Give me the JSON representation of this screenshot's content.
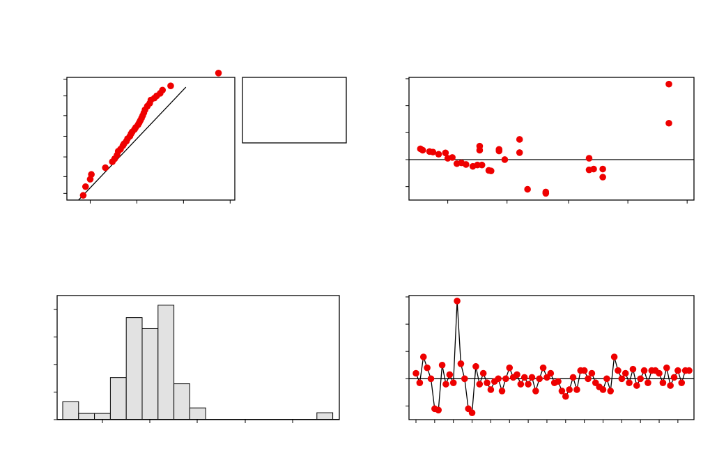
{
  "chart_data": [
    {
      "type": "scatter",
      "panel": "normal-probability-plot",
      "reference_line": "fitted",
      "legend_box": "right, empty",
      "x": [
        -2.3,
        -2.2,
        -2.0,
        -1.95,
        -1.35,
        -1.05,
        -0.95,
        -0.85,
        -0.8,
        -0.7,
        -0.6,
        -0.55,
        -0.45,
        -0.4,
        -0.3,
        -0.25,
        -0.2,
        -0.1,
        -0.05,
        0.05,
        0.1,
        0.15,
        0.2,
        0.25,
        0.3,
        0.35,
        0.45,
        0.55,
        0.6,
        0.75,
        0.85,
        1.0,
        1.1,
        1.45,
        3.5
      ],
      "y": [
        0.8,
        2,
        4,
        6,
        10,
        15,
        18,
        22,
        27,
        30,
        35,
        38,
        42,
        46,
        50,
        54,
        57,
        61,
        64,
        68,
        71,
        74,
        77,
        80,
        83,
        86,
        89,
        91,
        93,
        94,
        95,
        96,
        97,
        98,
        99.5
      ],
      "xlim": [
        -3,
        4.2
      ],
      "ylim_quantile": [
        -2.6,
        2.4
      ]
    },
    {
      "type": "scatter",
      "panel": "residuals-vs-fits",
      "reference_line": "zero",
      "x": [
        1.5,
        1.6,
        1.9,
        2.05,
        2.3,
        2.6,
        2.7,
        2.9,
        3.1,
        3.3,
        3.5,
        3.8,
        4.0,
        4.1,
        4.1,
        4.2,
        4.5,
        4.6,
        4.95,
        4.95,
        5.2,
        5.85,
        5.85,
        6.2,
        7.0,
        7.0,
        8.9,
        8.9,
        9.1,
        9.5,
        9.5,
        12.4,
        12.4
      ],
      "y": [
        0.4,
        0.35,
        0.3,
        0.28,
        0.2,
        0.25,
        0.05,
        0.08,
        -0.15,
        -0.12,
        -0.18,
        -0.25,
        -0.2,
        0.5,
        0.35,
        -0.2,
        -0.4,
        -0.42,
        0.38,
        0.32,
        0.0,
        0.75,
        0.26,
        -1.1,
        -1.2,
        -1.25,
        0.05,
        -0.38,
        -0.35,
        -0.65,
        -0.35,
        1.35,
        2.8
      ],
      "xlim": [
        1,
        13.5
      ],
      "ylim": [
        -1.5,
        3.05
      ]
    },
    {
      "type": "bar",
      "panel": "histogram-of-residuals",
      "values": [
        2.6,
        0.9,
        0.9,
        6.1,
        14.8,
        13.2,
        16.6,
        5.2,
        1.7,
        0,
        0,
        0,
        0,
        0,
        0,
        0,
        1.0
      ],
      "ylim": [
        0,
        18
      ]
    },
    {
      "type": "line",
      "panel": "residuals-vs-order",
      "reference_line": "zero",
      "values": [
        0.2,
        -0.15,
        0.8,
        0.4,
        0.0,
        -1.1,
        -1.15,
        0.5,
        -0.2,
        0.15,
        -0.15,
        2.85,
        0.55,
        0.0,
        -1.1,
        -1.25,
        0.45,
        -0.2,
        0.2,
        -0.15,
        -0.4,
        -0.1,
        0.0,
        -0.45,
        0.0,
        0.4,
        0.05,
        0.15,
        -0.2,
        0.05,
        -0.2,
        0.05,
        -0.45,
        0.0,
        0.4,
        0.05,
        0.2,
        -0.15,
        -0.1,
        -0.45,
        -0.65,
        -0.4,
        0.05,
        -0.4,
        0.3,
        0.3,
        0.0,
        0.2,
        -0.15,
        -0.3,
        -0.4,
        0.0,
        -0.45,
        0.8,
        0.3,
        0.0,
        0.2,
        -0.15,
        0.35,
        -0.25,
        0.0,
        0.3,
        -0.15,
        0.3,
        0.3,
        0.2,
        -0.15,
        0.4,
        -0.25,
        0.05,
        0.3,
        -0.15,
        0.3,
        0.3
      ],
      "ylim": [
        -1.5,
        3.05
      ]
    }
  ]
}
